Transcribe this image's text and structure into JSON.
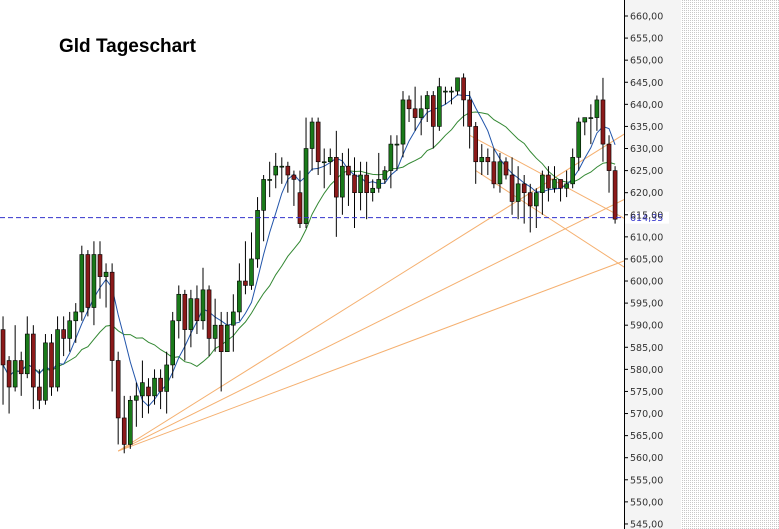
{
  "chart_data": {
    "type": "candlestick",
    "title": "Gld Tageschart",
    "ylim": [
      545,
      662
    ],
    "y_ticks": [
      "660,00",
      "655,00",
      "650,00",
      "645,00",
      "640,00",
      "635,00",
      "630,00",
      "625,00",
      "620,00",
      "615,00",
      "610,00",
      "605,00",
      "600,00",
      "595,00",
      "590,00",
      "585,00",
      "580,00",
      "575,00",
      "570,00",
      "565,00",
      "560,00",
      "555,00",
      "550,00",
      "545,00"
    ],
    "y_tick_values": [
      660,
      655,
      650,
      645,
      640,
      635,
      630,
      625,
      620,
      615,
      610,
      605,
      600,
      595,
      590,
      585,
      580,
      575,
      570,
      565,
      560,
      555,
      550,
      545
    ],
    "reference_line": {
      "value": 614.35,
      "label": "614,35",
      "color": "#3333cc"
    },
    "bar_count": 116,
    "candles": [
      [
        1,
        589,
        581,
        592,
        572
      ],
      [
        2,
        582,
        576,
        583,
        570
      ],
      [
        3,
        576,
        582,
        590,
        575
      ],
      [
        4,
        582,
        579,
        584,
        574
      ],
      [
        5,
        579,
        588,
        592,
        578
      ],
      [
        6,
        588,
        576,
        590,
        571
      ],
      [
        7,
        576,
        573,
        580,
        571
      ],
      [
        8,
        573,
        586,
        588,
        572
      ],
      [
        9,
        586,
        576,
        588,
        574
      ],
      [
        10,
        576,
        589,
        592,
        575
      ],
      [
        11,
        589,
        587,
        592,
        583
      ],
      [
        12,
        587,
        591,
        593,
        584
      ],
      [
        13,
        591,
        593,
        595,
        586
      ],
      [
        14,
        593,
        606,
        608,
        591
      ],
      [
        15,
        606,
        594,
        607,
        592
      ],
      [
        16,
        594,
        606,
        609,
        590
      ],
      [
        17,
        606,
        601,
        609,
        596
      ],
      [
        18,
        601,
        602,
        604,
        594
      ],
      [
        19,
        602,
        582,
        604,
        575
      ],
      [
        20,
        582,
        569,
        584,
        563
      ],
      [
        21,
        569,
        563,
        574,
        561
      ],
      [
        22,
        563,
        573,
        574,
        562
      ],
      [
        23,
        573,
        574,
        577,
        567
      ],
      [
        24,
        574,
        577,
        582,
        569
      ],
      [
        25,
        576,
        574,
        578,
        570
      ],
      [
        26,
        574,
        578,
        580,
        572
      ],
      [
        27,
        578,
        575,
        580,
        571
      ],
      [
        28,
        575,
        581,
        584,
        570
      ],
      [
        29,
        581,
        591,
        593,
        578
      ],
      [
        30,
        591,
        597,
        599,
        587
      ],
      [
        31,
        597,
        589,
        598,
        582
      ],
      [
        32,
        589,
        596,
        598,
        585
      ],
      [
        33,
        596,
        591,
        599,
        588
      ],
      [
        34,
        591,
        598,
        603,
        589
      ],
      [
        35,
        598,
        587,
        599,
        583
      ],
      [
        36,
        587,
        590,
        596,
        584
      ],
      [
        37,
        590,
        584,
        593,
        575
      ],
      [
        38,
        584,
        590,
        593,
        585
      ],
      [
        39,
        590,
        593,
        597,
        584
      ],
      [
        40,
        593,
        600,
        604,
        591
      ],
      [
        41,
        600,
        599,
        609,
        597
      ],
      [
        42,
        599,
        605,
        611,
        598
      ],
      [
        43,
        605,
        616,
        619,
        603
      ],
      [
        44,
        616,
        623,
        624,
        609
      ],
      [
        45,
        623,
        623,
        627,
        619
      ],
      [
        46,
        624,
        626,
        629,
        621
      ],
      [
        47,
        626,
        626,
        628,
        622
      ],
      [
        48,
        626,
        624,
        627,
        620
      ],
      [
        49,
        624,
        623,
        625,
        617
      ],
      [
        50,
        620,
        613,
        625,
        612
      ],
      [
        51,
        613,
        630,
        637,
        612
      ],
      [
        52,
        630,
        636,
        637,
        625
      ],
      [
        53,
        636,
        627,
        637,
        624
      ],
      [
        54,
        627,
        627,
        630,
        621
      ],
      [
        55,
        627,
        628,
        630,
        624
      ],
      [
        56,
        628,
        619,
        634,
        610
      ],
      [
        57,
        619,
        626,
        629,
        615
      ],
      [
        58,
        626,
        624,
        630,
        617
      ],
      [
        59,
        624,
        620,
        628,
        612
      ],
      [
        60,
        620,
        624,
        627,
        616
      ],
      [
        61,
        624,
        620,
        627,
        614
      ],
      [
        62,
        620,
        621,
        623,
        618
      ],
      [
        63,
        621,
        623,
        629,
        620
      ],
      [
        64,
        623,
        625,
        626,
        622
      ],
      [
        65,
        625,
        631,
        633,
        621
      ],
      [
        66,
        631,
        631,
        633,
        625
      ],
      [
        67,
        631,
        641,
        643,
        628
      ],
      [
        68,
        641,
        639,
        642,
        636
      ],
      [
        69,
        639,
        637,
        644,
        634
      ],
      [
        70,
        637,
        639,
        642,
        633
      ],
      [
        71,
        639,
        642,
        643,
        636
      ],
      [
        72,
        642,
        635,
        643,
        630
      ],
      [
        73,
        635,
        644,
        646,
        634
      ],
      [
        74,
        643,
        643,
        644,
        640
      ],
      [
        75,
        643,
        643,
        644,
        640
      ],
      [
        76,
        643,
        646,
        646,
        642
      ],
      [
        77,
        646,
        641,
        647,
        635
      ],
      [
        78,
        641,
        635,
        643,
        630
      ],
      [
        79,
        635,
        627,
        636,
        622
      ],
      [
        80,
        627,
        628,
        631,
        624
      ],
      [
        81,
        628,
        627,
        630,
        624
      ],
      [
        82,
        627,
        622,
        630,
        621
      ],
      [
        83,
        622,
        627,
        629,
        620
      ],
      [
        84,
        627,
        624,
        628,
        623
      ],
      [
        85,
        624,
        618,
        628,
        615
      ],
      [
        86,
        618,
        622,
        626,
        614
      ],
      [
        87,
        622,
        620,
        624,
        613
      ],
      [
        88,
        620,
        617,
        622,
        611
      ],
      [
        89,
        617,
        620,
        621,
        612
      ],
      [
        90,
        620,
        624,
        625,
        615
      ],
      [
        91,
        624,
        621,
        626,
        618
      ],
      [
        92,
        621,
        623,
        626,
        620
      ],
      [
        93,
        623,
        621,
        623,
        618
      ],
      [
        94,
        621,
        622,
        625,
        619
      ],
      [
        95,
        622,
        628,
        630,
        621
      ],
      [
        96,
        628,
        636,
        637,
        625
      ],
      [
        97,
        636,
        637,
        637,
        633
      ],
      [
        98,
        637,
        637,
        640,
        631
      ],
      [
        99,
        637,
        641,
        642,
        634
      ],
      [
        100,
        641,
        631,
        646,
        627
      ],
      [
        101,
        631,
        625,
        633,
        620
      ],
      [
        102,
        625,
        614,
        626,
        613
      ]
    ],
    "series": [
      {
        "kind": "moving-average-short",
        "color": "#2255aa"
      },
      {
        "kind": "moving-average-long",
        "color": "#338833"
      },
      {
        "kind": "trendlines",
        "color": "#f5b070"
      }
    ]
  }
}
